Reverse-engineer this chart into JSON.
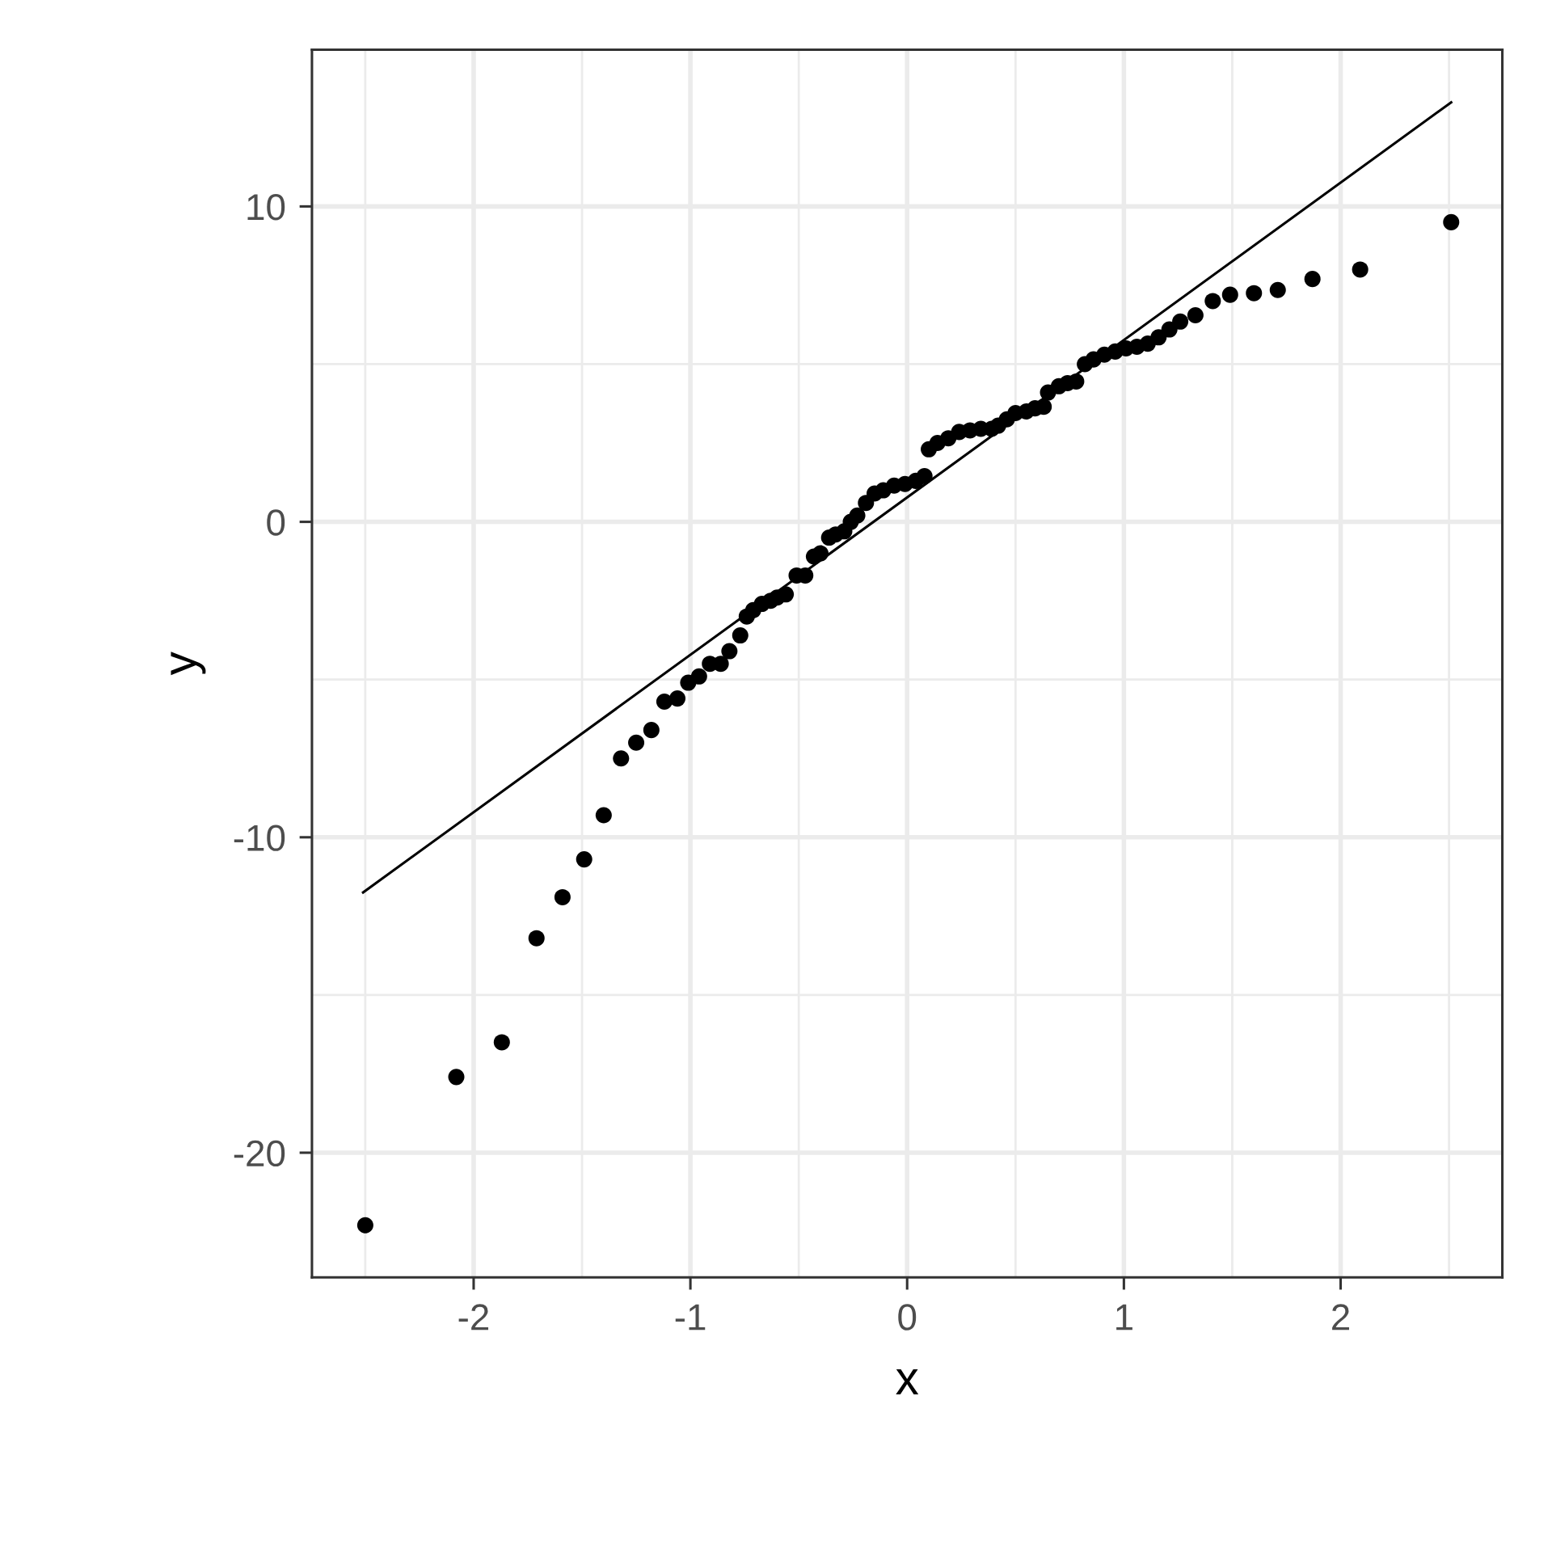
{
  "chart_data": {
    "type": "scatter",
    "xlabel": "x",
    "ylabel": "y",
    "xlim": [
      -2.746,
      2.746
    ],
    "ylim": [
      -23.95,
      14.97
    ],
    "xticks": [
      -2,
      -1,
      0,
      1,
      2
    ],
    "yticks": [
      -20,
      -10,
      0,
      10
    ],
    "grid": true,
    "series": [
      {
        "color": "#000000",
        "marker": "circle",
        "x": [
          -2.5,
          -2.08,
          -1.87,
          -1.71,
          -1.59,
          -1.49,
          -1.4,
          -1.32,
          -1.25,
          -1.18,
          -1.12,
          -1.06,
          -1.01,
          -0.96,
          -0.91,
          -0.86,
          -0.82,
          -0.77,
          -0.74,
          -0.71,
          -0.67,
          -0.63,
          -0.6,
          -0.56,
          -0.51,
          -0.47,
          -0.43,
          -0.4,
          -0.36,
          -0.33,
          -0.29,
          -0.26,
          -0.23,
          -0.19,
          -0.15,
          -0.11,
          -0.06,
          -0.01,
          0.04,
          0.08,
          0.1,
          0.14,
          0.19,
          0.24,
          0.29,
          0.34,
          0.39,
          0.42,
          0.46,
          0.5,
          0.55,
          0.59,
          0.63,
          0.65,
          0.7,
          0.74,
          0.78,
          0.82,
          0.86,
          0.91,
          0.96,
          1.01,
          1.06,
          1.11,
          1.16,
          1.21,
          1.26,
          1.33,
          1.41,
          1.49,
          1.6,
          1.71,
          1.87,
          2.09,
          2.51
        ],
        "values": [
          -22.3,
          -17.6,
          -16.5,
          -13.2,
          -11.9,
          -10.7,
          -9.3,
          -7.5,
          -7.0,
          -6.6,
          -5.7,
          -5.6,
          -5.1,
          -4.9,
          -4.5,
          -4.5,
          -4.1,
          -3.6,
          -3.0,
          -2.8,
          -2.6,
          -2.5,
          -2.4,
          -2.3,
          -1.7,
          -1.7,
          -1.1,
          -1.0,
          -0.5,
          -0.4,
          -0.3,
          0.0,
          0.2,
          0.6,
          0.9,
          1.0,
          1.15,
          1.2,
          1.3,
          1.45,
          2.3,
          2.5,
          2.65,
          2.85,
          2.9,
          2.95,
          2.95,
          3.05,
          3.25,
          3.45,
          3.5,
          3.6,
          3.65,
          4.1,
          4.3,
          4.4,
          4.45,
          5.0,
          5.15,
          5.3,
          5.4,
          5.5,
          5.55,
          5.65,
          5.85,
          6.1,
          6.35,
          6.55,
          7.0,
          7.2,
          7.25,
          7.35,
          7.7,
          8.0,
          9.5
        ]
      },
      {
        "type": "line",
        "color": "#000000",
        "x": [
          -2.51,
          2.51
        ],
        "values": [
          -11.75,
          13.3
        ]
      }
    ]
  }
}
